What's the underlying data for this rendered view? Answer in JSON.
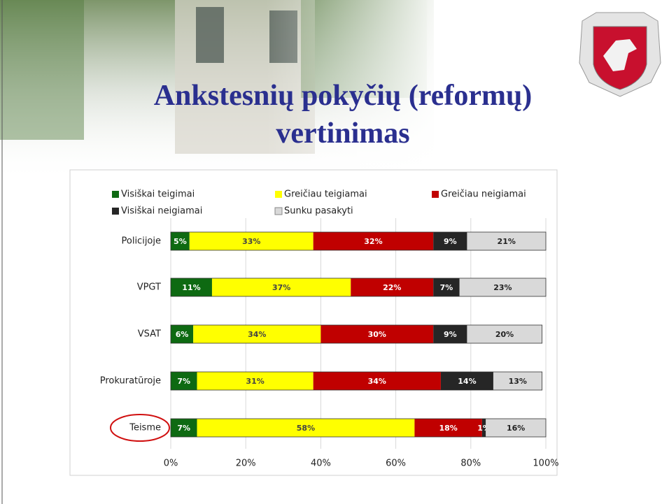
{
  "chart_data": {
    "type": "stacked-bar-horizontal",
    "title": "Ankstesnių pokyčių (reformų) vertinimas",
    "categories": [
      "Policijoje",
      "VPGT",
      "VSAT",
      "Prokuratūroje",
      "Teisme"
    ],
    "series": [
      {
        "name": "Visiškai teigimai",
        "color": "#0e6a12",
        "values": [
          5,
          11,
          6,
          7,
          7
        ],
        "value_labels": [
          "5%",
          "11%",
          "6%",
          "7%",
          "7%"
        ]
      },
      {
        "name": "Greičiau teigiamai",
        "color": "#ffff00",
        "values": [
          33,
          37,
          34,
          31,
          58
        ],
        "value_labels": [
          "33%",
          "37%",
          "34%",
          "31%",
          "58%"
        ]
      },
      {
        "name": "Greičiau neigiamai",
        "color": "#c00000",
        "values": [
          32,
          22,
          30,
          34,
          18
        ],
        "value_labels": [
          "32%",
          "22%",
          "30%",
          "34%",
          "18%"
        ]
      },
      {
        "name": "Visiškai neigiamai",
        "color": "#262626",
        "values": [
          9,
          7,
          9,
          14,
          1
        ],
        "value_labels": [
          "9%",
          "7%",
          "9%",
          "14%",
          "1%"
        ]
      },
      {
        "name": "Sunku pasakyti",
        "color": "#d9d9d9",
        "values": [
          21,
          23,
          20,
          13,
          16
        ],
        "value_labels": [
          "21%",
          "23%",
          "20%",
          "13%",
          "16%"
        ]
      }
    ],
    "xlim": [
      0,
      100
    ],
    "xticks": [
      {
        "value": 0,
        "label": "0%"
      },
      {
        "value": 20,
        "label": "20%"
      },
      {
        "value": 40,
        "label": "40%"
      },
      {
        "value": 60,
        "label": "60%"
      },
      {
        "value": 80,
        "label": "80%"
      },
      {
        "value": 100,
        "label": "100%"
      }
    ],
    "grid": true,
    "legend": "top"
  }
}
